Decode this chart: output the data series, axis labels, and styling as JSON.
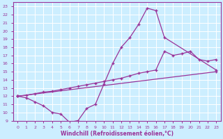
{
  "xlabel": "Windchill (Refroidissement éolien,°C)",
  "bg_color": "#cceeff",
  "grid_color": "#ffffff",
  "line_color": "#993399",
  "xlim": [
    -0.5,
    23.5
  ],
  "ylim": [
    9,
    23.5
  ],
  "xticks": [
    0,
    1,
    2,
    3,
    4,
    5,
    6,
    7,
    8,
    9,
    10,
    11,
    12,
    13,
    14,
    15,
    16,
    17,
    18,
    19,
    20,
    21,
    22,
    23
  ],
  "yticks": [
    9,
    10,
    11,
    12,
    13,
    14,
    15,
    16,
    17,
    18,
    19,
    20,
    21,
    22,
    23
  ],
  "curve1_x": [
    0,
    1,
    2,
    3,
    4,
    5,
    6,
    7,
    8,
    9,
    10,
    11,
    12,
    13,
    14,
    15,
    16,
    17,
    23
  ],
  "curve1_y": [
    12,
    11.8,
    11.3,
    10.8,
    10.0,
    9.8,
    8.8,
    9.0,
    10.5,
    11.0,
    13.5,
    16.0,
    18.0,
    19.2,
    20.8,
    22.8,
    22.5,
    19.2,
    15.2
  ],
  "curve2_x": [
    0,
    1,
    2,
    3,
    4,
    5,
    6,
    7,
    8,
    9,
    10,
    11,
    12,
    13,
    14,
    15,
    16,
    17,
    18,
    19,
    20,
    21,
    22,
    23
  ],
  "curve2_y": [
    12.0,
    12.1,
    12.3,
    12.5,
    12.6,
    12.8,
    13.0,
    13.2,
    13.4,
    13.6,
    13.8,
    14.0,
    14.2,
    14.5,
    14.8,
    15.0,
    15.2,
    17.5,
    17.0,
    17.2,
    17.5,
    16.5,
    16.3,
    16.5
  ],
  "curve3_x": [
    0,
    23
  ],
  "curve3_y": [
    12.0,
    15.0
  ]
}
